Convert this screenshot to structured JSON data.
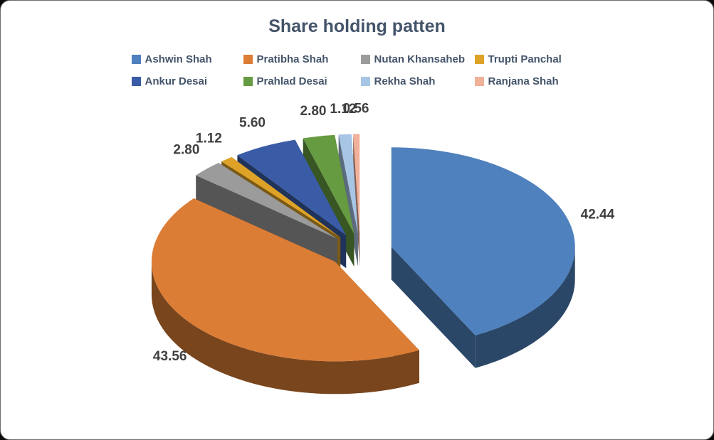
{
  "frame": {
    "background": "#ffffff",
    "outer_background": "#0a0a0a",
    "border_color": "#6e6e6e"
  },
  "colors": {
    "title": "#44546A",
    "legend_text": "#44546A",
    "data_label": "#404040"
  },
  "chart_data": {
    "type": "pie",
    "style": "3d-exploded",
    "title": "Share holding patten",
    "legend_position": "top",
    "start_angle_deg": 0,
    "direction": "clockwise",
    "grid": false,
    "series": [
      {
        "name": "Ashwin Shah",
        "value": 42.44,
        "color": "#4E81BD"
      },
      {
        "name": "Pratibha Shah",
        "value": 43.56,
        "color": "#DC7D35"
      },
      {
        "name": "Nutan Khansaheb",
        "value": 2.8,
        "color": "#9B9B9B"
      },
      {
        "name": "Trupti Panchal",
        "value": 1.12,
        "color": "#DDA227"
      },
      {
        "name": "Ankur Desai",
        "value": 5.6,
        "color": "#3A5CA6"
      },
      {
        "name": "Prahlad Desai",
        "value": 2.8,
        "color": "#669B41"
      },
      {
        "name": "Rekha Shah",
        "value": 1.12,
        "color": "#A7C5E5"
      },
      {
        "name": "Ranjana Shah",
        "value": 0.56,
        "color": "#F0B099"
      }
    ],
    "data_labels": [
      "42.44",
      "43.56",
      "2.80",
      "1.12",
      "5.60",
      "2.80",
      "1.12",
      "0.56"
    ]
  }
}
